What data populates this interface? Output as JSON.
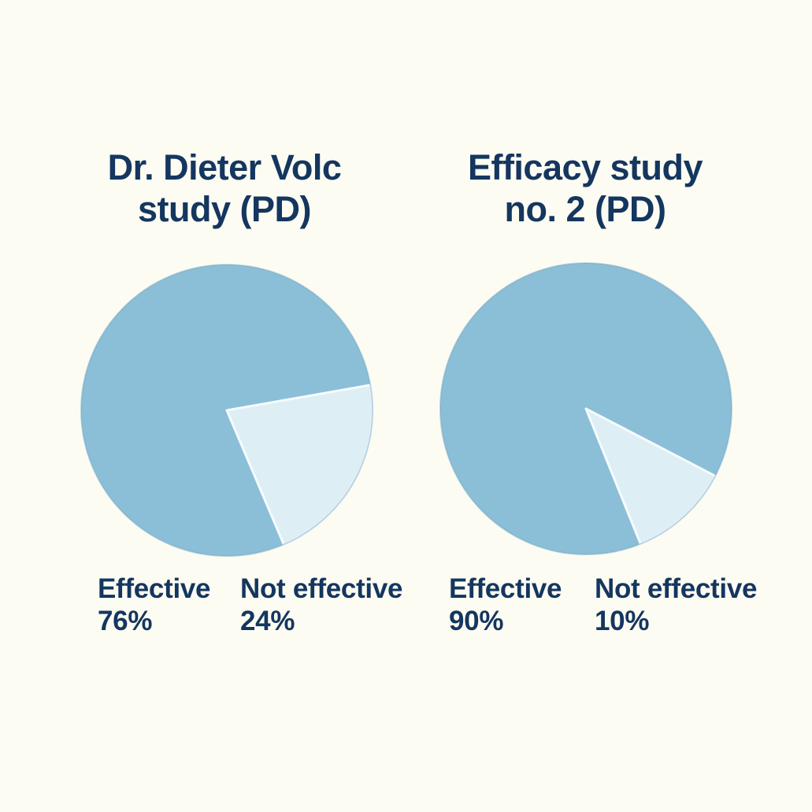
{
  "background": "#FCFCF3",
  "text_color": "#14365F",
  "chart_data": [
    {
      "type": "pie",
      "title": "Dr. Dieter Volc study (PD)",
      "title_lines": [
        "Dr. Dieter Volc",
        "study (PD)"
      ],
      "labels": [
        "Effective",
        "Not effective"
      ],
      "values": [
        76,
        24
      ],
      "unit": "%",
      "value_labels": [
        "76%",
        "24%"
      ],
      "colors": [
        "#8BBFD8",
        "#DDEEF5"
      ],
      "slice_border_color": "#F7FBFD",
      "rim_color": "rgba(110,162,192,0.45)",
      "legend_position": "below",
      "wedge_visual_deg": {
        "start": 80,
        "end": 157
      }
    },
    {
      "type": "pie",
      "title": "Efficacy study no. 2 (PD)",
      "title_lines": [
        "Efficacy study",
        "no. 2 (PD)"
      ],
      "labels": [
        "Effective",
        "Not effective"
      ],
      "values": [
        90,
        10
      ],
      "unit": "%",
      "value_labels": [
        "90%",
        "10%"
      ],
      "colors": [
        "#8BBFD8",
        "#DDEEF5"
      ],
      "slice_border_color": "#F7FBFD",
      "rim_color": "rgba(110,162,192,0.45)",
      "legend_position": "below",
      "wedge_visual_deg": {
        "start": 117.5,
        "end": 158
      }
    }
  ]
}
